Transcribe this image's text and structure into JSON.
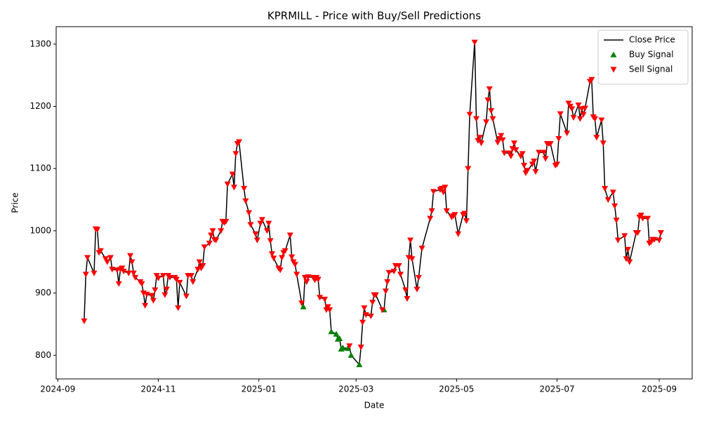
{
  "chart_data": {
    "type": "line",
    "title": "KPRMILL - Price with Buy/Sell Predictions",
    "x_label": "Date",
    "y_label": "Price",
    "xlim": [
      "2024-08-31",
      "2025-09-21"
    ],
    "xticks": [
      "2024-09",
      "2024-11",
      "2025-01",
      "2025-03",
      "2025-05",
      "2025-07",
      "2025-09"
    ],
    "ylim": [
      762,
      1328
    ],
    "yticks": [
      800,
      900,
      1000,
      1100,
      1200,
      1300
    ],
    "grid": false,
    "legend": "upper right",
    "series": [
      {
        "name": "Close Price",
        "type": "line",
        "color": "#000000",
        "x": [
          "2024-09-17",
          "2024-09-18",
          "2024-09-19",
          "2024-09-23",
          "2024-09-24",
          "2024-09-25",
          "2024-09-26",
          "2024-09-27",
          "2024-09-30",
          "2024-10-01",
          "2024-10-03",
          "2024-10-04",
          "2024-10-07",
          "2024-10-08",
          "2024-10-09",
          "2024-10-10",
          "2024-10-11",
          "2024-10-14",
          "2024-10-15",
          "2024-10-16",
          "2024-10-17",
          "2024-10-18",
          "2024-10-21",
          "2024-10-22",
          "2024-10-23",
          "2024-10-24",
          "2024-10-25",
          "2024-10-28",
          "2024-10-29",
          "2024-10-30",
          "2024-10-31",
          "2024-11-01",
          "2024-11-04",
          "2024-11-05",
          "2024-11-06",
          "2024-11-07",
          "2024-11-08",
          "2024-11-11",
          "2024-11-12",
          "2024-11-13",
          "2024-11-14",
          "2024-11-18",
          "2024-11-19",
          "2024-11-21",
          "2024-11-22",
          "2024-11-25",
          "2024-11-26",
          "2024-11-27",
          "2024-11-28",
          "2024-11-29",
          "2024-12-02",
          "2024-12-03",
          "2024-12-04",
          "2024-12-05",
          "2024-12-06",
          "2024-12-09",
          "2024-12-10",
          "2024-12-11",
          "2024-12-12",
          "2024-12-13",
          "2024-12-16",
          "2024-12-17",
          "2024-12-18",
          "2024-12-19",
          "2024-12-20",
          "2024-12-23",
          "2024-12-24",
          "2024-12-26",
          "2024-12-27",
          "2024-12-30",
          "2024-12-31",
          "2025-01-02",
          "2025-01-03",
          "2025-01-06",
          "2025-01-07",
          "2025-01-08",
          "2025-01-09",
          "2025-01-10",
          "2025-01-13",
          "2025-01-14",
          "2025-01-15",
          "2025-01-16",
          "2025-01-17",
          "2025-01-20",
          "2025-01-21",
          "2025-01-22",
          "2025-01-23",
          "2025-01-24",
          "2025-01-27",
          "2025-01-28",
          "2025-01-29",
          "2025-01-30",
          "2025-01-31",
          "2025-02-03",
          "2025-02-04",
          "2025-02-05",
          "2025-02-06",
          "2025-02-07",
          "2025-02-10",
          "2025-02-11",
          "2025-02-12",
          "2025-02-13",
          "2025-02-14",
          "2025-02-17",
          "2025-02-18",
          "2025-02-19",
          "2025-02-20",
          "2025-02-21",
          "2025-02-24",
          "2025-02-25",
          "2025-02-26",
          "2025-03-03",
          "2025-03-04",
          "2025-03-05",
          "2025-03-06",
          "2025-03-07",
          "2025-03-10",
          "2025-03-11",
          "2025-03-12",
          "2025-03-13",
          "2025-03-17",
          "2025-03-18",
          "2025-03-19",
          "2025-03-20",
          "2025-03-21",
          "2025-03-24",
          "2025-03-25",
          "2025-03-27",
          "2025-03-28",
          "2025-03-31",
          "2025-04-01",
          "2025-04-02",
          "2025-04-03",
          "2025-04-04",
          "2025-04-07",
          "2025-04-08",
          "2025-04-10",
          "2025-04-15",
          "2025-04-16",
          "2025-04-17",
          "2025-04-21",
          "2025-04-22",
          "2025-04-23",
          "2025-04-24",
          "2025-04-25",
          "2025-04-28",
          "2025-04-29",
          "2025-04-30",
          "2025-05-02",
          "2025-05-05",
          "2025-05-06",
          "2025-05-07",
          "2025-05-08",
          "2025-05-09",
          "2025-05-12",
          "2025-05-13",
          "2025-05-14",
          "2025-05-15",
          "2025-05-16",
          "2025-05-19",
          "2025-05-20",
          "2025-05-21",
          "2025-05-22",
          "2025-05-23",
          "2025-05-26",
          "2025-05-27",
          "2025-05-28",
          "2025-05-29",
          "2025-05-30",
          "2025-06-02",
          "2025-06-03",
          "2025-06-04",
          "2025-06-05",
          "2025-06-06",
          "2025-06-09",
          "2025-06-10",
          "2025-06-11",
          "2025-06-12",
          "2025-06-13",
          "2025-06-16",
          "2025-06-17",
          "2025-06-18",
          "2025-06-20",
          "2025-06-23",
          "2025-06-24",
          "2025-06-25",
          "2025-06-26",
          "2025-06-27",
          "2025-06-30",
          "2025-07-01",
          "2025-07-02",
          "2025-07-03",
          "2025-07-07",
          "2025-07-08",
          "2025-07-09",
          "2025-07-10",
          "2025-07-11",
          "2025-07-14",
          "2025-07-15",
          "2025-07-16",
          "2025-07-17",
          "2025-07-18",
          "2025-07-21",
          "2025-07-22",
          "2025-07-23",
          "2025-07-24",
          "2025-07-25",
          "2025-07-28",
          "2025-07-29",
          "2025-07-30",
          "2025-08-01",
          "2025-08-04",
          "2025-08-05",
          "2025-08-06",
          "2025-08-07",
          "2025-08-11",
          "2025-08-12",
          "2025-08-13",
          "2025-08-14",
          "2025-08-18",
          "2025-08-19",
          "2025-08-20",
          "2025-08-21",
          "2025-08-22",
          "2025-08-25",
          "2025-08-26",
          "2025-08-27",
          "2025-08-28",
          "2025-08-29",
          "2025-09-01",
          "2025-09-02"
        ],
        "values": [
          855,
          930,
          957,
          932,
          1003,
          1002,
          965,
          968,
          955,
          950,
          957,
          938,
          937,
          915,
          938,
          940,
          935,
          932,
          960,
          950,
          932,
          925,
          918,
          915,
          900,
          880,
          898,
          896,
          888,
          905,
          928,
          924,
          928,
          897,
          906,
          928,
          925,
          925,
          922,
          876,
          917,
          895,
          928,
          928,
          918,
          938,
          950,
          940,
          944,
          974,
          980,
          993,
          1000,
          986,
          985,
          1000,
          1015,
          1013,
          1015,
          1075,
          1091,
          1070,
          1124,
          1140,
          1143,
          1068,
          1048,
          1029,
          1010,
          995,
          985,
          1012,
          1018,
          1000,
          1012,
          984,
          963,
          956,
          940,
          937,
          957,
          965,
          968,
          993,
          958,
          950,
          946,
          930,
          884,
          878,
          925,
          918,
          926,
          925,
          921,
          925,
          922,
          893,
          890,
          873,
          878,
          873,
          838,
          834,
          826,
          827,
          810,
          812,
          811,
          815,
          800,
          785,
          813,
          853,
          876,
          865,
          863,
          885,
          897,
          897,
          873,
          873,
          903,
          918,
          933,
          935,
          944,
          944,
          930,
          905,
          891,
          957,
          985,
          955,
          906,
          925,
          972,
          1020,
          1032,
          1063,
          1066,
          1068,
          1062,
          1070,
          1032,
          1022,
          1024,
          1026,
          995,
          1026,
          1028,
          1016,
          1100,
          1187,
          1303,
          1180,
          1145,
          1150,
          1141,
          1175,
          1210,
          1228,
          1193,
          1180,
          1142,
          1148,
          1153,
          1146,
          1125,
          1125,
          1120,
          1132,
          1141,
          1130,
          1120,
          1124,
          1105,
          1093,
          1097,
          1107,
          1112,
          1095,
          1126,
          1126,
          1116,
          1140,
          1140,
          1140,
          1105,
          1107,
          1148,
          1188,
          1157,
          1205,
          1200,
          1196,
          1182,
          1202,
          1180,
          1196,
          1187,
          1197,
          1240,
          1243,
          1183,
          1180,
          1150,
          1178,
          1141,
          1068,
          1050,
          1062,
          1040,
          1017,
          985,
          992,
          955,
          970,
          950,
          997,
          997,
          1022,
          1025,
          1020,
          1020,
          980,
          982,
          986,
          986,
          985,
          997
        ]
      },
      {
        "name": "Buy Signal",
        "type": "scatter",
        "marker": "^",
        "color": "#008000",
        "x": [
          "2025-01-28",
          "2025-02-14",
          "2025-02-17",
          "2025-02-18",
          "2025-02-19",
          "2025-02-20",
          "2025-02-21",
          "2025-02-24",
          "2025-02-26",
          "2025-03-03",
          "2025-03-18"
        ],
        "values": [
          878,
          838,
          834,
          826,
          827,
          810,
          812,
          811,
          800,
          785,
          873
        ]
      },
      {
        "name": "Sell Signal",
        "type": "scatter",
        "marker": "v",
        "color": "#ff0000",
        "x": [
          "2024-09-17",
          "2024-09-18",
          "2024-09-19",
          "2024-09-23",
          "2024-09-24",
          "2024-09-25",
          "2024-09-26",
          "2024-09-27",
          "2024-09-30",
          "2024-10-01",
          "2024-10-03",
          "2024-10-04",
          "2024-10-07",
          "2024-10-08",
          "2024-10-09",
          "2024-10-10",
          "2024-10-11",
          "2024-10-14",
          "2024-10-15",
          "2024-10-16",
          "2024-10-17",
          "2024-10-18",
          "2024-10-21",
          "2024-10-22",
          "2024-10-23",
          "2024-10-24",
          "2024-10-25",
          "2024-10-28",
          "2024-10-29",
          "2024-10-30",
          "2024-10-31",
          "2024-11-01",
          "2024-11-04",
          "2024-11-05",
          "2024-11-06",
          "2024-11-07",
          "2024-11-08",
          "2024-11-11",
          "2024-11-12",
          "2024-11-13",
          "2024-11-14",
          "2024-11-18",
          "2024-11-19",
          "2024-11-21",
          "2024-11-22",
          "2024-11-25",
          "2024-11-26",
          "2024-11-27",
          "2024-11-28",
          "2024-11-29",
          "2024-12-02",
          "2024-12-03",
          "2024-12-04",
          "2024-12-05",
          "2024-12-06",
          "2024-12-09",
          "2024-12-10",
          "2024-12-11",
          "2024-12-12",
          "2024-12-13",
          "2024-12-16",
          "2024-12-17",
          "2024-12-18",
          "2024-12-19",
          "2024-12-20",
          "2024-12-23",
          "2024-12-24",
          "2024-12-26",
          "2024-12-27",
          "2024-12-30",
          "2024-12-31",
          "2025-01-02",
          "2025-01-03",
          "2025-01-06",
          "2025-01-07",
          "2025-01-08",
          "2025-01-09",
          "2025-01-10",
          "2025-01-13",
          "2025-01-14",
          "2025-01-15",
          "2025-01-16",
          "2025-01-17",
          "2025-01-20",
          "2025-01-21",
          "2025-01-22",
          "2025-01-23",
          "2025-01-24",
          "2025-01-27",
          "2025-01-29",
          "2025-01-30",
          "2025-01-31",
          "2025-02-03",
          "2025-02-04",
          "2025-02-05",
          "2025-02-06",
          "2025-02-07",
          "2025-02-10",
          "2025-02-11",
          "2025-02-12",
          "2025-02-13",
          "2025-02-25",
          "2025-03-04",
          "2025-03-05",
          "2025-03-06",
          "2025-03-07",
          "2025-03-10",
          "2025-03-11",
          "2025-03-12",
          "2025-03-13",
          "2025-03-17",
          "2025-03-19",
          "2025-03-20",
          "2025-03-21",
          "2025-03-24",
          "2025-03-25",
          "2025-03-27",
          "2025-03-28",
          "2025-03-31",
          "2025-04-01",
          "2025-04-02",
          "2025-04-03",
          "2025-04-04",
          "2025-04-07",
          "2025-04-08",
          "2025-04-10",
          "2025-04-15",
          "2025-04-16",
          "2025-04-17",
          "2025-04-21",
          "2025-04-22",
          "2025-04-23",
          "2025-04-24",
          "2025-04-25",
          "2025-04-28",
          "2025-04-29",
          "2025-04-30",
          "2025-05-02",
          "2025-05-05",
          "2025-05-06",
          "2025-05-07",
          "2025-05-08",
          "2025-05-09",
          "2025-05-12",
          "2025-05-13",
          "2025-05-14",
          "2025-05-15",
          "2025-05-16",
          "2025-05-19",
          "2025-05-20",
          "2025-05-21",
          "2025-05-22",
          "2025-05-23",
          "2025-05-26",
          "2025-05-27",
          "2025-05-28",
          "2025-05-29",
          "2025-05-30",
          "2025-06-02",
          "2025-06-03",
          "2025-06-04",
          "2025-06-05",
          "2025-06-06",
          "2025-06-09",
          "2025-06-10",
          "2025-06-11",
          "2025-06-12",
          "2025-06-13",
          "2025-06-16",
          "2025-06-17",
          "2025-06-18",
          "2025-06-20",
          "2025-06-23",
          "2025-06-24",
          "2025-06-25",
          "2025-06-26",
          "2025-06-27",
          "2025-06-30",
          "2025-07-01",
          "2025-07-02",
          "2025-07-03",
          "2025-07-07",
          "2025-07-08",
          "2025-07-09",
          "2025-07-10",
          "2025-07-11",
          "2025-07-14",
          "2025-07-15",
          "2025-07-16",
          "2025-07-17",
          "2025-07-18",
          "2025-07-21",
          "2025-07-22",
          "2025-07-23",
          "2025-07-24",
          "2025-07-25",
          "2025-07-28",
          "2025-07-29",
          "2025-07-30",
          "2025-08-01",
          "2025-08-04",
          "2025-08-05",
          "2025-08-06",
          "2025-08-07",
          "2025-08-11",
          "2025-08-12",
          "2025-08-13",
          "2025-08-14",
          "2025-08-18",
          "2025-08-19",
          "2025-08-20",
          "2025-08-21",
          "2025-08-22",
          "2025-08-25",
          "2025-08-26",
          "2025-08-27",
          "2025-08-28",
          "2025-08-29",
          "2025-09-01",
          "2025-09-02"
        ],
        "values": [
          855,
          930,
          957,
          932,
          1003,
          1002,
          965,
          968,
          955,
          950,
          957,
          938,
          937,
          915,
          938,
          940,
          935,
          932,
          960,
          950,
          932,
          925,
          918,
          915,
          900,
          880,
          898,
          896,
          888,
          905,
          928,
          924,
          928,
          897,
          906,
          928,
          925,
          925,
          922,
          876,
          917,
          895,
          928,
          928,
          918,
          938,
          950,
          940,
          944,
          974,
          980,
          993,
          1000,
          986,
          985,
          1000,
          1015,
          1013,
          1015,
          1075,
          1091,
          1070,
          1124,
          1140,
          1143,
          1068,
          1048,
          1029,
          1010,
          995,
          985,
          1012,
          1018,
          1000,
          1012,
          984,
          963,
          956,
          940,
          937,
          957,
          965,
          968,
          993,
          958,
          950,
          946,
          930,
          884,
          925,
          918,
          926,
          925,
          921,
          925,
          922,
          893,
          890,
          873,
          878,
          873,
          815,
          813,
          853,
          876,
          865,
          863,
          885,
          897,
          897,
          873,
          903,
          918,
          933,
          935,
          944,
          944,
          930,
          905,
          891,
          957,
          985,
          955,
          906,
          925,
          972,
          1020,
          1032,
          1063,
          1066,
          1068,
          1062,
          1070,
          1032,
          1022,
          1024,
          1026,
          995,
          1026,
          1028,
          1016,
          1100,
          1187,
          1303,
          1180,
          1145,
          1150,
          1141,
          1175,
          1210,
          1228,
          1193,
          1180,
          1142,
          1148,
          1153,
          1146,
          1125,
          1125,
          1120,
          1132,
          1141,
          1130,
          1120,
          1124,
          1105,
          1093,
          1097,
          1107,
          1112,
          1095,
          1126,
          1126,
          1116,
          1140,
          1140,
          1140,
          1105,
          1107,
          1148,
          1188,
          1157,
          1205,
          1200,
          1196,
          1182,
          1202,
          1180,
          1196,
          1187,
          1197,
          1240,
          1243,
          1183,
          1180,
          1150,
          1178,
          1141,
          1068,
          1050,
          1062,
          1040,
          1017,
          985,
          992,
          955,
          970,
          950,
          997,
          997,
          1022,
          1025,
          1020,
          1020,
          980,
          982,
          986,
          986,
          985,
          997
        ]
      }
    ]
  }
}
